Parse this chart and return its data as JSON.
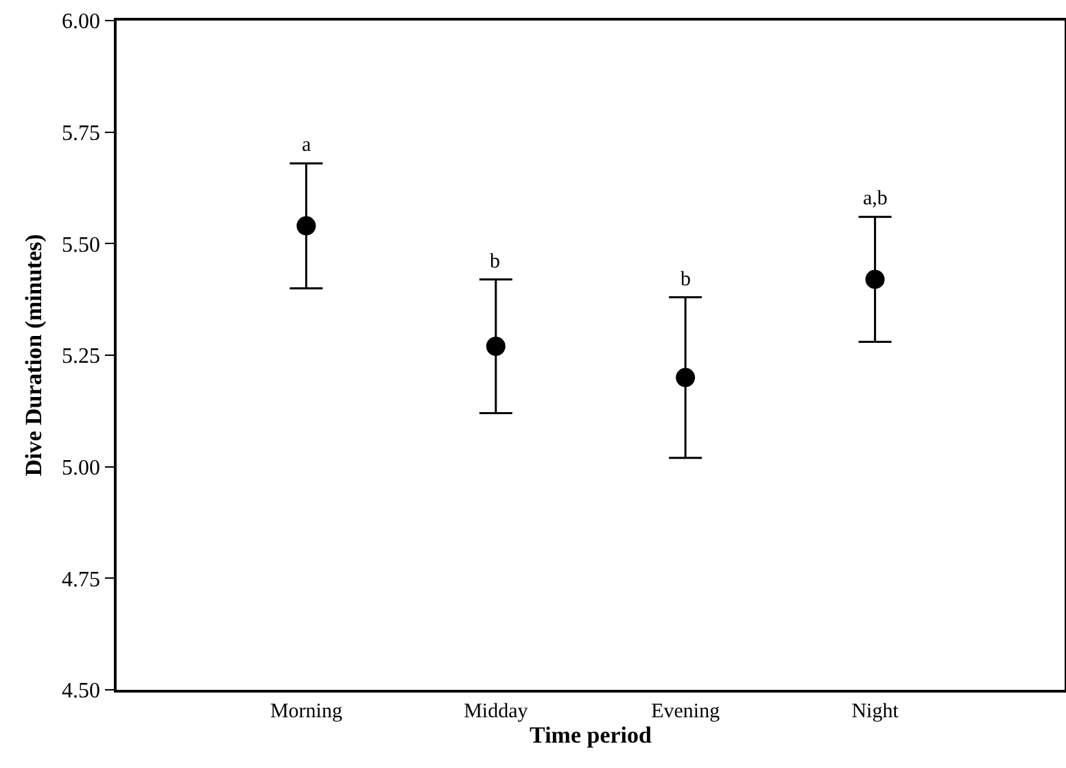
{
  "chart_data": {
    "type": "scatter",
    "xlabel": "Time period",
    "ylabel": "Dive Duration (minutes)",
    "categories": [
      "Morning",
      "Midday",
      "Evening",
      "Night"
    ],
    "values": [
      5.54,
      5.27,
      5.2,
      5.42
    ],
    "errors": [
      [
        5.4,
        5.68
      ],
      [
        5.12,
        5.42
      ],
      [
        5.02,
        5.38
      ],
      [
        5.28,
        5.56
      ]
    ],
    "color": "#000000",
    "marker": "circle",
    "ylim": [
      4.5,
      6.0
    ],
    "yticks": [
      {
        "value": 4.5,
        "label": "4.50"
      },
      {
        "value": 4.75,
        "label": "4.75"
      },
      {
        "value": 5.0,
        "label": "5.00"
      },
      {
        "value": 5.25,
        "label": "5.25"
      },
      {
        "value": 5.5,
        "label": "5.50"
      },
      {
        "value": 5.75,
        "label": "5.75"
      },
      {
        "value": 6.0,
        "label": "6.00"
      }
    ],
    "grid": false,
    "legend": false,
    "annotations": [
      {
        "text": "a",
        "x": "Morning",
        "y": 5.68
      },
      {
        "text": "b",
        "x": "Midday",
        "y": 5.42
      },
      {
        "text": "b",
        "x": "Evening",
        "y": 5.38
      },
      {
        "text": "a,b",
        "x": "Night",
        "y": 5.56
      }
    ]
  }
}
